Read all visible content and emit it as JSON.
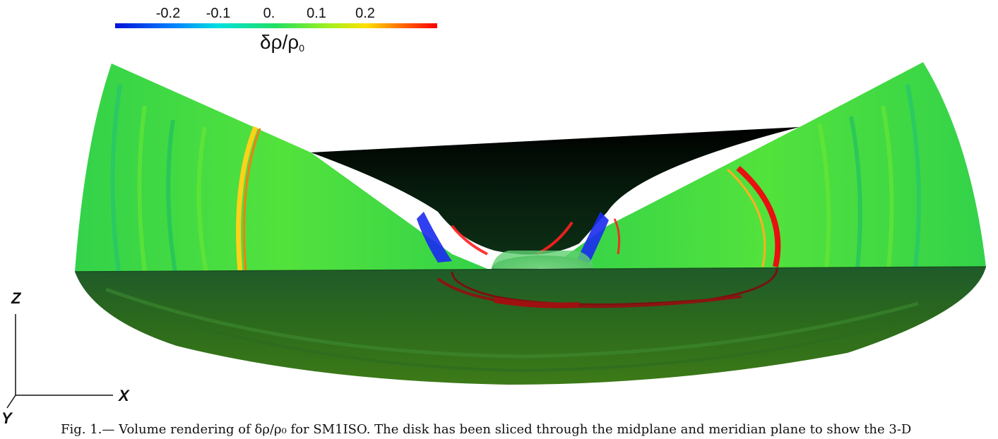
{
  "colorbar": {
    "ticks": [
      "-0.2",
      "-0.1",
      "0.",
      "0.1",
      "0.2"
    ],
    "label_main": "δρ/ρ",
    "label_sub": "0"
  },
  "axes": {
    "z": "Z",
    "x": "X",
    "y": "Y"
  },
  "caption": "Fig. 1.— Volume rendering of δρ/ρ₀ for SM1ISO. The disk has been sliced through the midplane and meridian plane to show the 3-D"
}
